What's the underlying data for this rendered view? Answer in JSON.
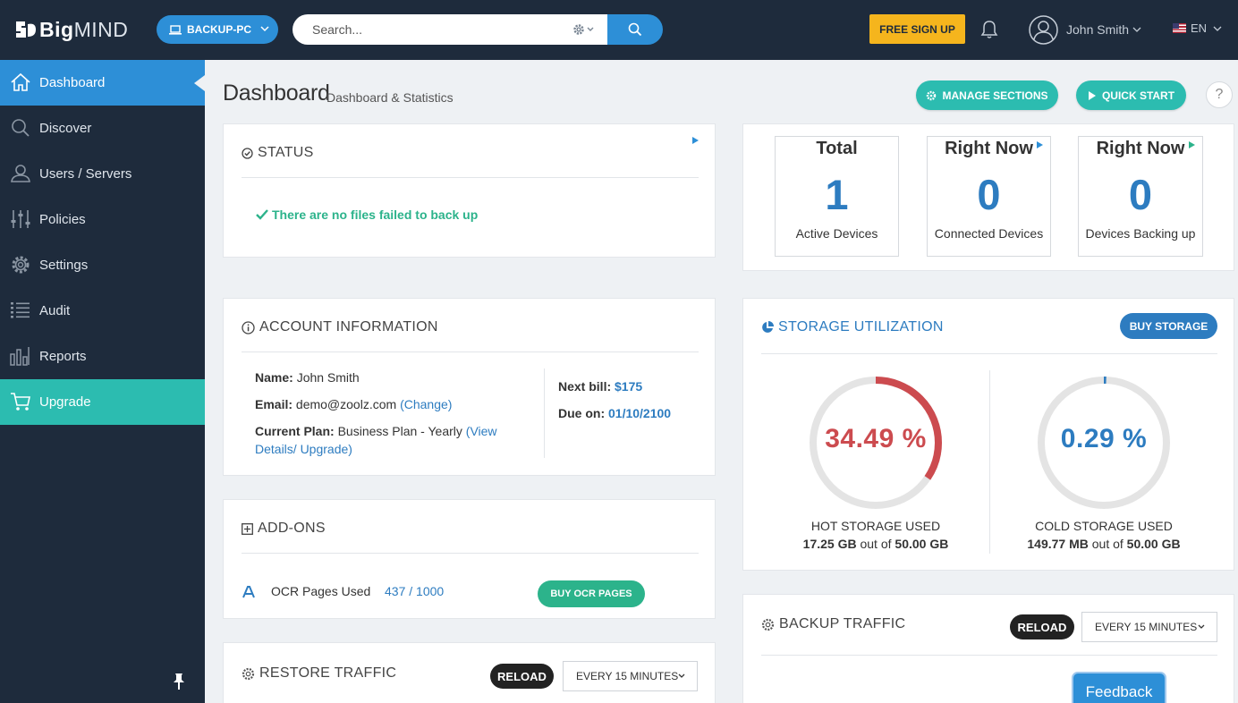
{
  "header": {
    "logo_big": "Big",
    "logo_mind": "MIND",
    "device": "BACKUP-PC",
    "search_placeholder": "Search...",
    "signup": "FREE SIGN UP",
    "user_name": "John Smith",
    "lang": "EN"
  },
  "sidebar": {
    "items": [
      {
        "label": "Dashboard",
        "icon": "home-icon"
      },
      {
        "label": "Discover",
        "icon": "search-icon"
      },
      {
        "label": "Users / Servers",
        "icon": "users-icon"
      },
      {
        "label": "Policies",
        "icon": "sliders-icon"
      },
      {
        "label": "Settings",
        "icon": "gear-icon"
      },
      {
        "label": "Audit",
        "icon": "list-icon"
      },
      {
        "label": "Reports",
        "icon": "bar-chart-icon"
      },
      {
        "label": "Upgrade",
        "icon": "cart-icon"
      }
    ]
  },
  "page": {
    "title": "Dashboard",
    "subtitle": "Dashboard & Statistics",
    "manage_sections": "MANAGE SECTIONS",
    "quick_start": "QUICK START",
    "help": "?"
  },
  "status": {
    "title": "STATUS",
    "message": "There are no files failed to back up"
  },
  "devices": [
    {
      "heading": "Total",
      "number": "1",
      "label": "Active Devices"
    },
    {
      "heading": "Right Now",
      "number": "0",
      "label": "Connected Devices"
    },
    {
      "heading": "Right Now",
      "number": "0",
      "label": "Devices Backing up"
    }
  ],
  "account": {
    "title": "ACCOUNT INFORMATION",
    "name_label": "Name:",
    "name": "John Smith",
    "email_label": "Email:",
    "email": "demo@zoolz.com",
    "change": "(Change)",
    "plan_label": "Current Plan:",
    "plan": "Business Plan - Yearly",
    "view_details_1": "(View",
    "view_details_2": "Details/ Upgrade)",
    "next_bill_label": "Next bill:",
    "next_bill": "$175",
    "due_label": "Due on:",
    "due": "01/10/2100"
  },
  "addons": {
    "title": "ADD-ONS",
    "ocr_label": "OCR Pages Used",
    "ocr_value": "437 / 1000",
    "buy_ocr": "BUY OCR PAGES"
  },
  "restore_traffic": {
    "title": "RESTORE TRAFFIC",
    "reload": "RELOAD",
    "interval": "EVERY 15 MINUTES"
  },
  "storage": {
    "title": "STORAGE UTILIZATION",
    "buy": "BUY STORAGE",
    "hot": {
      "percent": 34.49,
      "percent_text": "34.49 %",
      "label": "HOT STORAGE USED",
      "used": "17.25 GB",
      "out_of": "out of",
      "total": "50.00 GB",
      "color": "#cc4b4f"
    },
    "cold": {
      "percent": 0.29,
      "percent_text": "0.29 %",
      "label": "COLD STORAGE USED",
      "used": "149.77 MB",
      "out_of": "out of",
      "total": "50.00 GB",
      "color": "#2d7cc0"
    }
  },
  "backup_traffic": {
    "title": "BACKUP TRAFFIC",
    "reload": "RELOAD",
    "interval": "EVERY 15 MINUTES"
  },
  "feedback": "Feedback",
  "colors": {
    "navy": "#1e2b3c",
    "blue": "#2d8fd7",
    "teal": "#2cbcb0",
    "green": "#2cb38b",
    "yellow": "#f5b51d",
    "red": "#cc4b4f"
  }
}
